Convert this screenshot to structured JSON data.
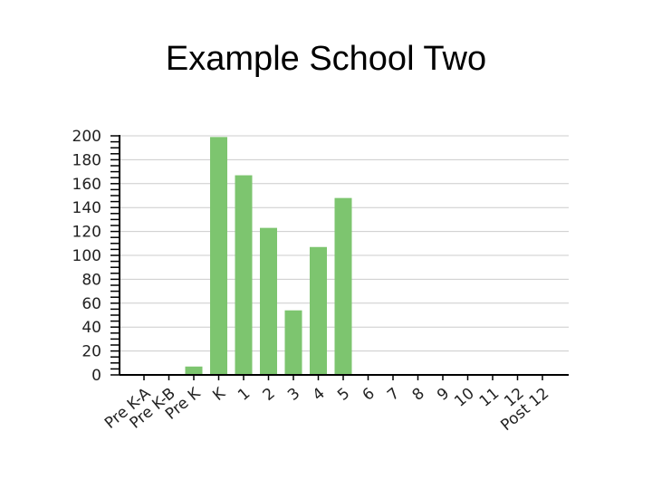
{
  "chart_data": {
    "type": "bar",
    "title": "Example School Two",
    "xlabel": "",
    "ylabel": "",
    "categories": [
      "Pre K-A",
      "Pre K-B",
      "Pre K",
      "K",
      "1",
      "2",
      "3",
      "4",
      "5",
      "6",
      "7",
      "8",
      "9",
      "10",
      "11",
      "12",
      "Post 12"
    ],
    "values": [
      0,
      0,
      7,
      199,
      167,
      123,
      54,
      107,
      148,
      0,
      0,
      0,
      0,
      0,
      0,
      0,
      0
    ],
    "ylim": [
      0,
      200
    ],
    "yticks": [
      0,
      20,
      40,
      60,
      80,
      100,
      120,
      140,
      160,
      180,
      200
    ],
    "grid": true,
    "bar_color": "#7dc56f",
    "grid_color": "#cccccc"
  }
}
